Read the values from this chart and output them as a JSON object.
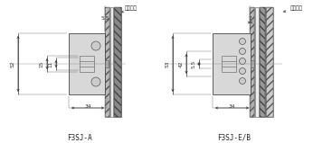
{
  "bg_color": "#ffffff",
  "lc": "#444444",
  "dim_color": "#333333",
  "left": {
    "label": "F3SJ-A",
    "dim_55": "5.5",
    "dim_52": "52",
    "dim_15": "15",
    "dim_11": "11",
    "dim_34": "34",
    "optical_label": "光学表面"
  },
  "right": {
    "label": "F3SJ-E/B",
    "dim_7": "7",
    "dim_53": "53",
    "dim_42": "42",
    "dim_55": "5.5",
    "dim_34": "34",
    "optical_label": "光学表面"
  }
}
